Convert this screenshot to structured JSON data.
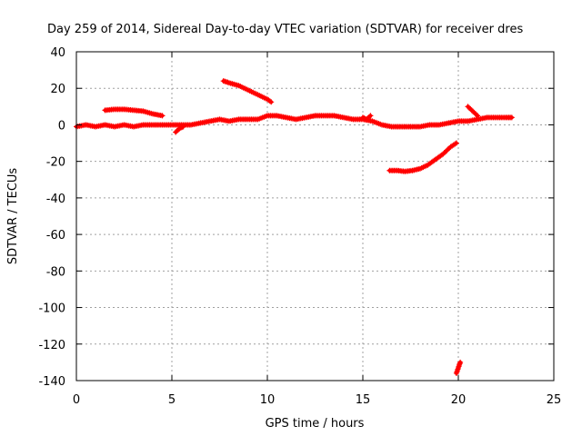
{
  "chart_data": {
    "type": "scatter",
    "title": "Day 259 of 2014, Sidereal Day-to-day VTEC variation (SDTVAR) for receiver dres",
    "xlabel": "GPS time / hours",
    "ylabel": "SDTVAR / TECUs",
    "xlim": [
      0,
      25
    ],
    "ylim": [
      -140,
      40
    ],
    "xticks": [
      "0",
      "5",
      "10",
      "15",
      "20",
      "25"
    ],
    "yticks": [
      "40",
      "20",
      "0",
      "-20",
      "-40",
      "-60",
      "-80",
      "-100",
      "-120",
      "-140"
    ],
    "grid": true,
    "marker": "plus",
    "series_color": "#ff0000",
    "series": [
      {
        "points": [
          [
            0,
            -1
          ],
          [
            0.5,
            0
          ],
          [
            1,
            -1
          ],
          [
            1.5,
            0
          ],
          [
            2,
            -1
          ],
          [
            2.5,
            0
          ],
          [
            3,
            -1
          ],
          [
            3.5,
            0
          ],
          [
            4,
            0
          ],
          [
            4.5,
            0
          ],
          [
            5,
            0
          ],
          [
            5.5,
            0
          ],
          [
            6,
            0
          ],
          [
            6.5,
            1
          ],
          [
            7,
            2
          ],
          [
            7.5,
            3
          ],
          [
            8,
            2
          ],
          [
            8.5,
            3
          ],
          [
            9,
            3
          ],
          [
            9.5,
            3
          ],
          [
            10,
            5
          ],
          [
            10.5,
            5
          ],
          [
            11,
            4
          ],
          [
            11.5,
            3
          ],
          [
            12,
            4
          ],
          [
            12.5,
            5
          ],
          [
            13,
            5
          ],
          [
            13.5,
            5
          ],
          [
            14,
            4
          ],
          [
            14.5,
            3
          ],
          [
            15,
            3
          ],
          [
            15.5,
            2
          ],
          [
            16,
            0
          ],
          [
            16.5,
            -1
          ],
          [
            17,
            -1
          ],
          [
            17.5,
            -1
          ],
          [
            18,
            -1
          ],
          [
            18.5,
            0
          ],
          [
            19,
            0
          ],
          [
            19.5,
            1
          ],
          [
            20,
            2
          ],
          [
            20.5,
            2
          ],
          [
            21,
            3
          ],
          [
            21.5,
            4
          ],
          [
            22,
            4
          ],
          [
            22.5,
            4
          ],
          [
            22.8,
            4
          ]
        ]
      },
      {
        "points": [
          [
            1.5,
            8
          ],
          [
            2,
            8.5
          ],
          [
            2.5,
            8.5
          ],
          [
            3,
            8
          ],
          [
            3.5,
            7.5
          ],
          [
            4,
            6
          ],
          [
            4.5,
            5
          ]
        ]
      },
      {
        "points": [
          [
            5.2,
            -4
          ],
          [
            5.4,
            -2
          ],
          [
            5.6,
            -1
          ]
        ]
      },
      {
        "points": [
          [
            7.7,
            24
          ],
          [
            8,
            23
          ],
          [
            8.5,
            21.5
          ],
          [
            9,
            19
          ],
          [
            9.5,
            16.5
          ],
          [
            10,
            14
          ],
          [
            10.2,
            12.5
          ]
        ]
      },
      {
        "points": [
          [
            15,
            4
          ],
          [
            15.2,
            3
          ],
          [
            15.4,
            5
          ]
        ]
      },
      {
        "points": [
          [
            16.4,
            -25
          ],
          [
            16.8,
            -25
          ],
          [
            17.2,
            -25.5
          ],
          [
            17.6,
            -25
          ],
          [
            18,
            -24
          ],
          [
            18.4,
            -22
          ],
          [
            18.8,
            -19
          ],
          [
            19.2,
            -16
          ],
          [
            19.6,
            -12
          ],
          [
            19.9,
            -10
          ]
        ]
      },
      {
        "points": [
          [
            20.5,
            10
          ],
          [
            20.7,
            8
          ],
          [
            20.9,
            6
          ],
          [
            21,
            5
          ]
        ]
      },
      {
        "points": [
          [
            19.9,
            -136
          ],
          [
            20,
            -133
          ],
          [
            20.1,
            -130
          ]
        ]
      }
    ]
  }
}
